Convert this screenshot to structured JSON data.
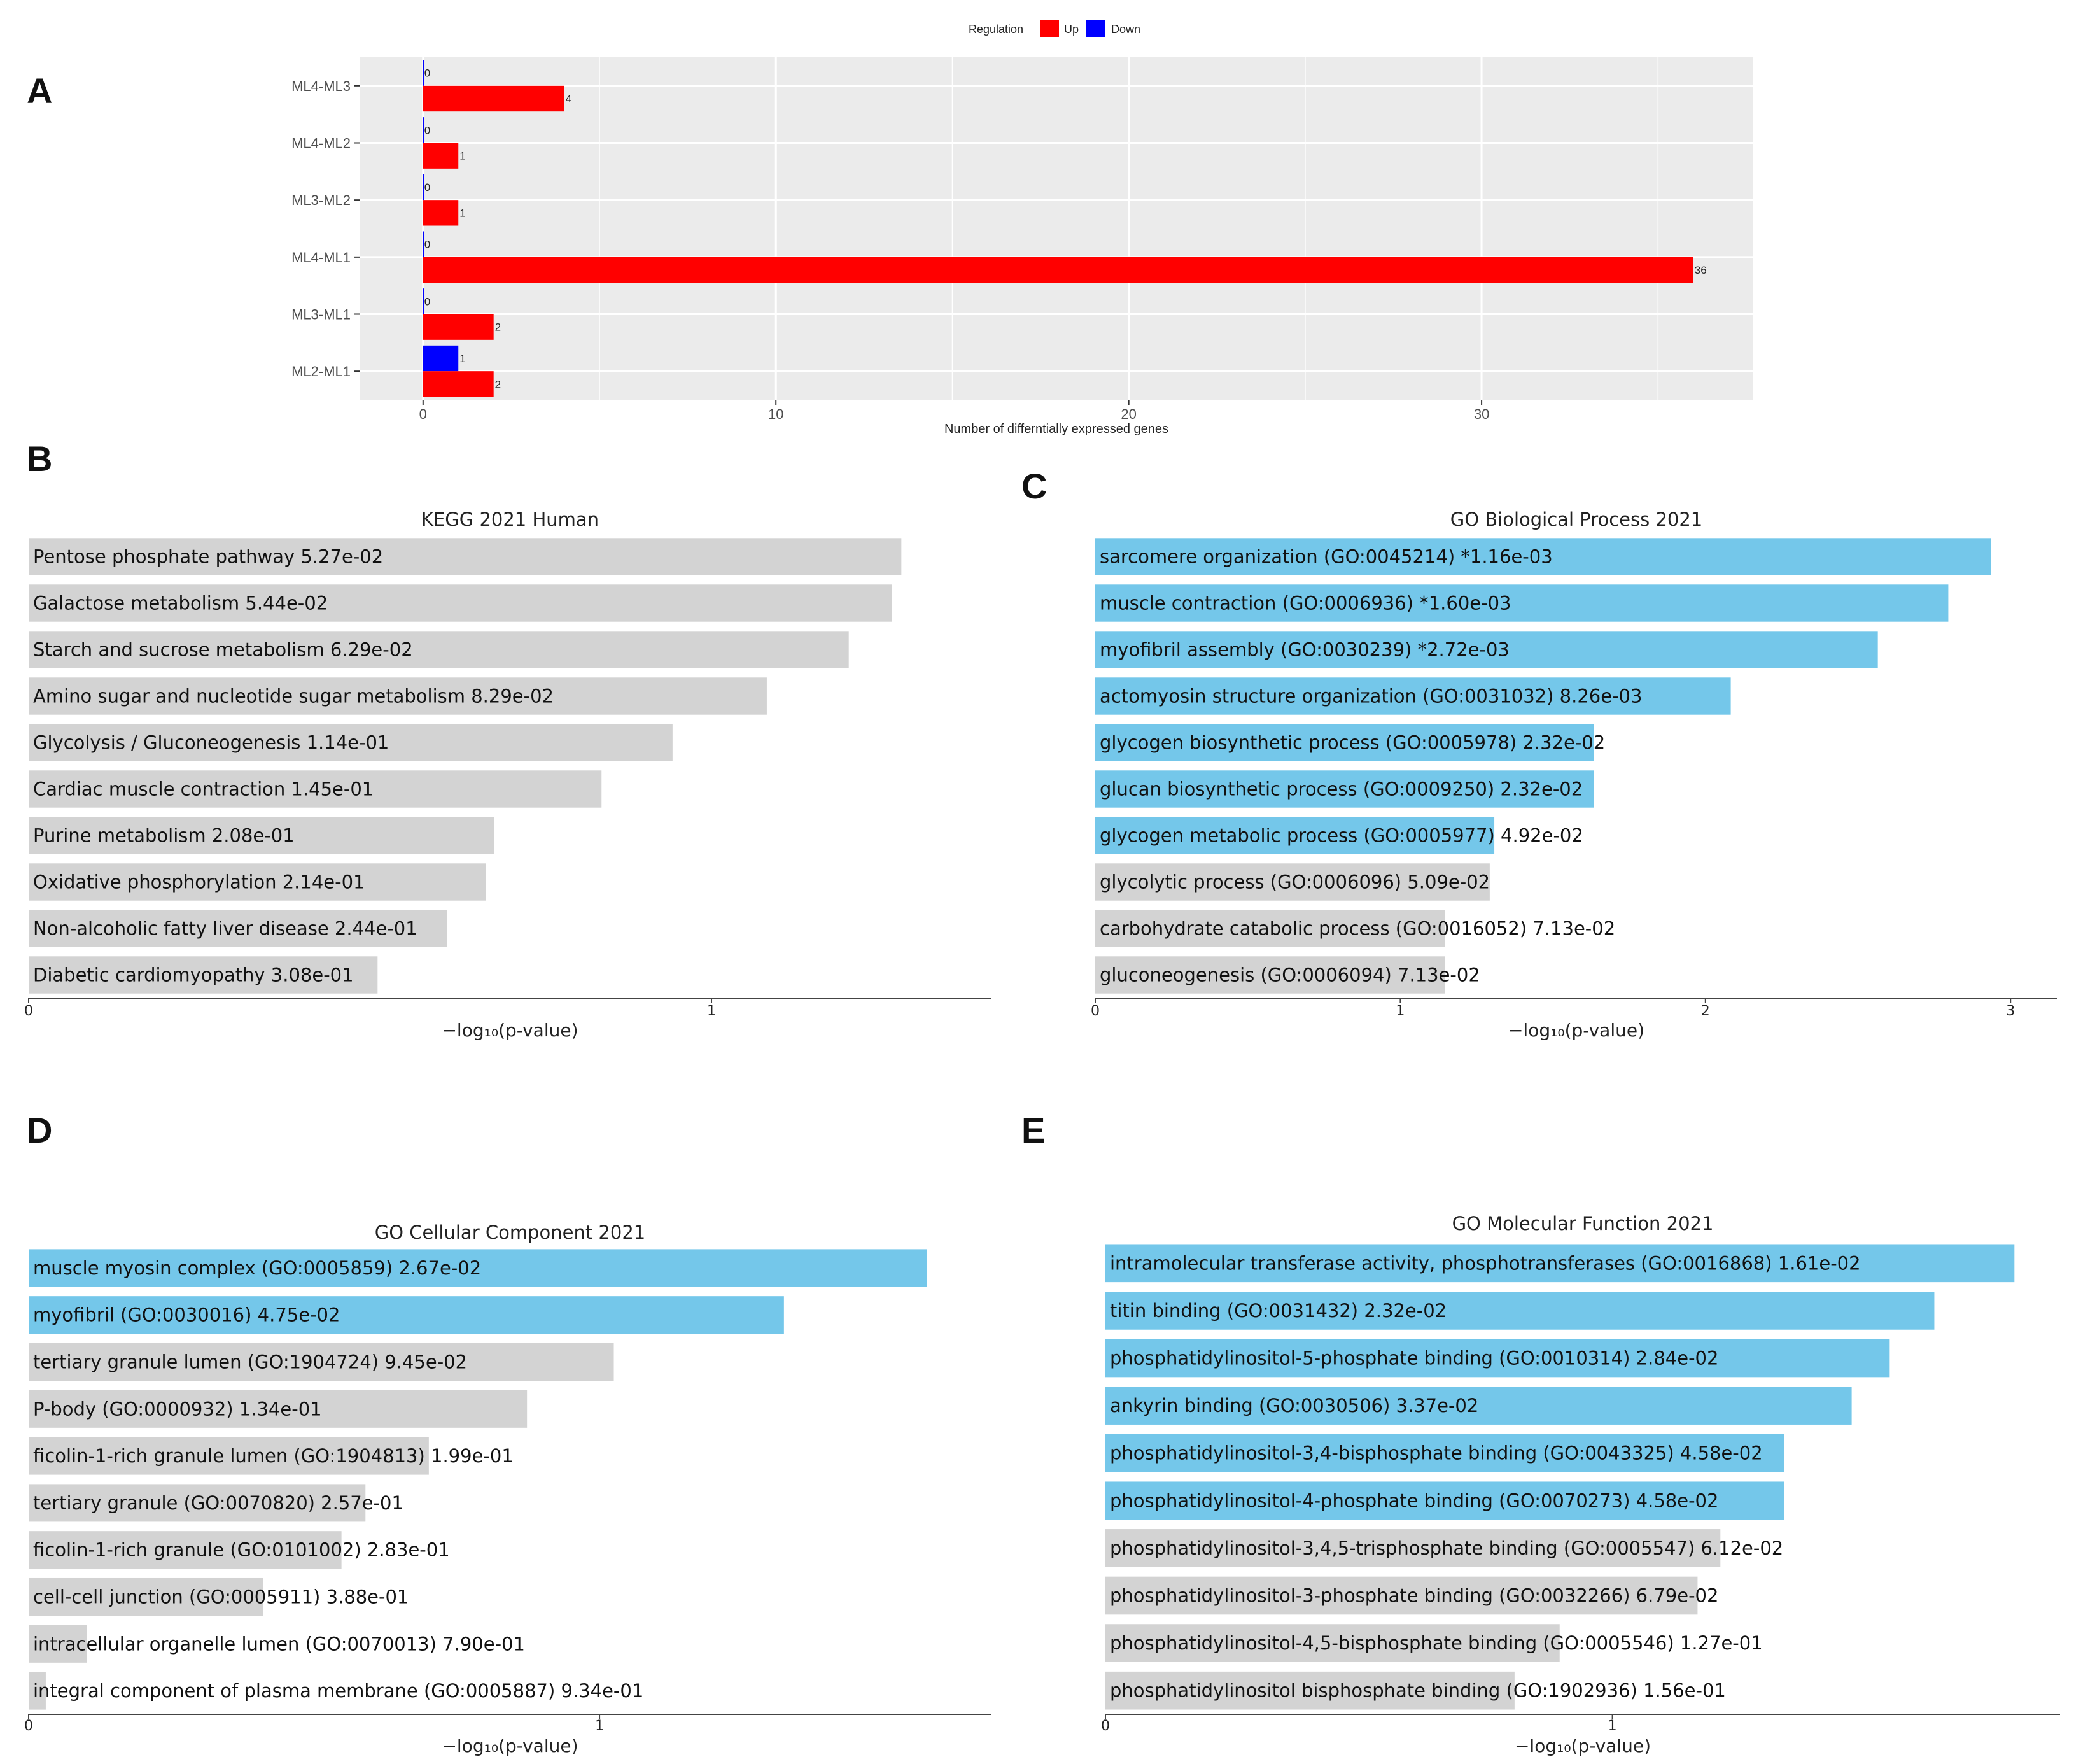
{
  "colors": {
    "up": "#ff0000",
    "down": "#0000ff",
    "significant": "#74c7ea",
    "nonsignificant": "#d3d3d3",
    "ggplot_panel": "#ebebeb",
    "ggplot_grid": "#ffffff"
  },
  "chart_data": [
    {
      "panel": "A",
      "type": "bar",
      "orientation": "horizontal",
      "title": "",
      "xlabel": "Number of differntially expressed genes",
      "ylabel": "",
      "legend": {
        "title": "Regulation",
        "placement": "top",
        "items": [
          "Up",
          "Down"
        ]
      },
      "categories": [
        "ML4-ML3",
        "ML4-ML2",
        "ML3-ML2",
        "ML4-ML1",
        "ML3-ML1",
        "ML2-ML1"
      ],
      "series": [
        {
          "name": "Up",
          "values": [
            4,
            1,
            1,
            36,
            2,
            2
          ]
        },
        {
          "name": "Down",
          "values": [
            0,
            0,
            0,
            0,
            0,
            1
          ]
        }
      ],
      "xticks": [
        0,
        10,
        20,
        30
      ],
      "xlim": [
        -1.8,
        37.7
      ],
      "grid": true
    },
    {
      "panel": "B",
      "type": "bar",
      "orientation": "horizontal",
      "title": "KEGG 2021 Human",
      "xlabel": "−log₁₀(p-value)",
      "terms": [
        "Pentose phosphate pathway",
        "Galactose metabolism",
        "Starch and sucrose metabolism",
        "Amino sugar and nucleotide sugar metabolism",
        "Glycolysis / Gluconeogenesis",
        "Cardiac muscle contraction",
        "Purine metabolism",
        "Oxidative phosphorylation",
        "Non-alcoholic fatty liver disease",
        "Diabetic cardiomyopathy"
      ],
      "pvalue_labels": [
        "5.27e-02",
        "5.44e-02",
        "6.29e-02",
        "8.29e-02",
        "1.14e-01",
        "1.45e-01",
        "2.08e-01",
        "2.14e-01",
        "2.44e-01",
        "3.08e-01"
      ],
      "values": [
        1.278,
        1.264,
        1.201,
        1.081,
        0.943,
        0.839,
        0.682,
        0.67,
        0.613,
        0.511
      ],
      "significant": [
        false,
        false,
        false,
        false,
        false,
        false,
        false,
        false,
        false,
        false
      ],
      "xticks": [
        0,
        1
      ],
      "xlim": [
        0,
        1.342
      ]
    },
    {
      "panel": "C",
      "type": "bar",
      "orientation": "horizontal",
      "title": "GO Biological Process 2021",
      "xlabel": "−log₁₀(p-value)",
      "terms": [
        "sarcomere organization (GO:0045214)",
        "muscle contraction (GO:0006936)",
        "myofibril assembly (GO:0030239)",
        "actomyosin structure organization (GO:0031032)",
        "glycogen biosynthetic process (GO:0005978)",
        "glucan biosynthetic process (GO:0009250)",
        "glycogen metabolic process (GO:0005977)",
        "glycolytic process (GO:0006096)",
        "carbohydrate catabolic process (GO:0016052)",
        "gluconeogenesis (GO:0006094)"
      ],
      "pvalue_labels": [
        "*1.16e-03",
        "*1.60e-03",
        "*2.72e-03",
        "8.26e-03",
        "2.32e-02",
        "2.32e-02",
        "4.92e-02",
        "5.09e-02",
        "7.13e-02",
        "7.13e-02"
      ],
      "values": [
        2.936,
        2.796,
        2.565,
        2.083,
        1.635,
        1.635,
        1.308,
        1.293,
        1.147,
        1.147
      ],
      "significant": [
        true,
        true,
        true,
        true,
        true,
        true,
        true,
        false,
        false,
        false
      ],
      "xticks": [
        0,
        1,
        2,
        3
      ],
      "xlim": [
        0,
        3.083
      ]
    },
    {
      "panel": "D",
      "type": "bar",
      "orientation": "horizontal",
      "title": "GO Cellular Component 2021",
      "xlabel": "−log₁₀(p-value)",
      "terms": [
        "muscle myosin complex (GO:0005859)",
        "myofibril (GO:0030016)",
        "tertiary granule lumen (GO:1904724)",
        "P-body (GO:0000932)",
        "ficolin-1-rich granule lumen (GO:1904813)",
        "tertiary granule (GO:0070820)",
        "ficolin-1-rich granule (GO:0101002)",
        "cell-cell junction (GO:0005911)",
        "intracellular organelle lumen (GO:0070013)",
        "integral component of plasma membrane (GO:0005887)"
      ],
      "pvalue_labels": [
        "2.67e-02",
        "4.75e-02",
        "9.45e-02",
        "1.34e-01",
        "1.99e-01",
        "2.57e-01",
        "2.83e-01",
        "3.88e-01",
        "7.90e-01",
        "9.34e-01"
      ],
      "values": [
        1.573,
        1.323,
        1.025,
        0.873,
        0.701,
        0.59,
        0.548,
        0.411,
        0.102,
        0.03
      ],
      "significant": [
        true,
        true,
        false,
        false,
        false,
        false,
        false,
        false,
        false,
        false
      ],
      "xticks": [
        0,
        1
      ],
      "xlim": [
        0,
        1.652
      ]
    },
    {
      "panel": "E",
      "type": "bar",
      "orientation": "horizontal",
      "title": "GO Molecular Function 2021",
      "xlabel": "−log₁₀(p-value)",
      "terms": [
        "intramolecular transferase activity, phosphotransferases (GO:0016868)",
        "titin binding (GO:0031432)",
        "phosphatidylinositol-5-phosphate binding (GO:0010314)",
        "ankyrin binding (GO:0030506)",
        "phosphatidylinositol-3,4-bisphosphate binding (GO:0043325)",
        "phosphatidylinositol-4-phosphate binding (GO:0070273)",
        "phosphatidylinositol-3,4,5-trisphosphate binding (GO:0005547)",
        "phosphatidylinositol-3-phosphate binding (GO:0032266)",
        "phosphatidylinositol-4,5-bisphosphate binding (GO:0005546)",
        "phosphatidylinositol bisphosphate binding (GO:1902936)"
      ],
      "pvalue_labels": [
        "1.61e-02",
        "2.32e-02",
        "2.84e-02",
        "3.37e-02",
        "4.58e-02",
        "4.58e-02",
        "6.12e-02",
        "6.79e-02",
        "1.27e-01",
        "1.56e-01"
      ],
      "values": [
        1.793,
        1.635,
        1.547,
        1.472,
        1.339,
        1.339,
        1.213,
        1.168,
        0.896,
        0.807
      ],
      "significant": [
        true,
        true,
        true,
        true,
        true,
        true,
        false,
        false,
        false,
        false
      ],
      "xticks": [
        0,
        1
      ],
      "xlim": [
        0,
        1.883
      ]
    }
  ]
}
